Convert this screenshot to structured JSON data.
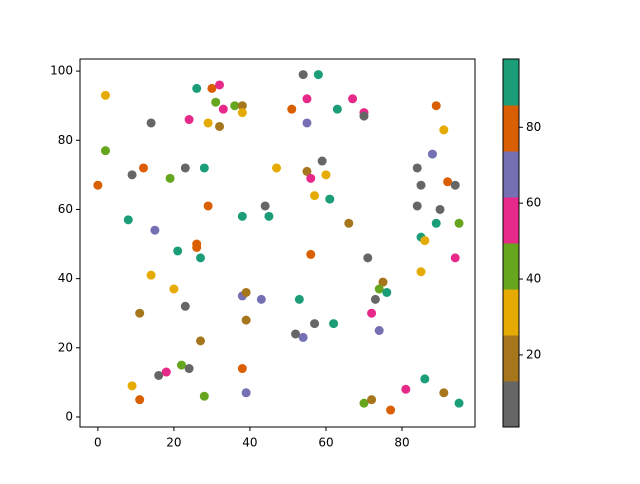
{
  "chart_data": {
    "type": "scatter",
    "x": [
      2,
      2,
      0,
      14,
      9,
      12,
      8,
      15,
      14,
      11,
      9,
      11,
      16,
      18,
      19,
      20,
      21,
      23,
      23,
      22,
      24,
      24,
      26,
      26,
      26,
      27,
      27,
      28,
      28,
      29,
      29,
      30,
      32,
      31,
      33,
      32,
      36,
      38,
      38,
      38,
      38,
      39,
      39,
      38,
      39,
      43,
      44,
      45,
      47,
      51,
      54,
      58,
      55,
      55,
      55,
      56,
      59,
      60,
      57,
      61,
      56,
      53,
      52,
      54,
      57,
      62,
      63,
      67,
      70,
      70,
      66,
      71,
      75,
      74,
      76,
      73,
      72,
      74,
      70,
      72,
      77,
      81,
      86,
      91,
      95,
      89,
      91,
      88,
      84,
      85,
      92,
      94,
      84,
      90,
      89,
      95,
      85,
      86,
      94,
      85
    ],
    "y": [
      93,
      77,
      67,
      85,
      70,
      72,
      57,
      54,
      41,
      30,
      9,
      5,
      12,
      13,
      69,
      37,
      48,
      72,
      32,
      15,
      14,
      86,
      95,
      50,
      49,
      46,
      22,
      6,
      72,
      85,
      61,
      95,
      96,
      91,
      89,
      84,
      90,
      90,
      88,
      58,
      35,
      36,
      28,
      14,
      7,
      34,
      61,
      58,
      72,
      89,
      99,
      99,
      92,
      85,
      71,
      69,
      74,
      70,
      64,
      63,
      47,
      34,
      24,
      23,
      27,
      27,
      89,
      92,
      88,
      87,
      56,
      46,
      39,
      37,
      36,
      34,
      30,
      25,
      4,
      5,
      2,
      8,
      11,
      7,
      4,
      90,
      83,
      76,
      72,
      67,
      68,
      67,
      61,
      60,
      56,
      56,
      52,
      51,
      46,
      42
    ],
    "c": [
      31,
      43,
      80,
      7,
      7,
      80,
      92,
      67,
      31,
      19,
      31,
      80,
      7,
      55,
      43,
      31,
      92,
      7,
      7,
      43,
      7,
      55,
      92,
      80,
      80,
      92,
      19,
      43,
      92,
      31,
      80,
      80,
      55,
      43,
      55,
      19,
      43,
      19,
      31,
      92,
      67,
      19,
      19,
      80,
      67,
      67,
      7,
      92,
      31,
      80,
      7,
      92,
      55,
      67,
      19,
      55,
      7,
      31,
      31,
      92,
      80,
      92,
      7,
      67,
      7,
      92,
      92,
      55,
      55,
      7,
      19,
      7,
      19,
      43,
      92,
      7,
      55,
      67,
      43,
      19,
      80,
      55,
      92,
      19,
      92,
      80,
      31,
      67,
      7,
      7,
      80,
      7,
      7,
      7,
      92,
      43,
      92,
      31,
      55,
      31
    ],
    "colormap": [
      "#666666",
      "#a6761d",
      "#e6ab02",
      "#66a61e",
      "#e7298a",
      "#7570b3",
      "#d95f02",
      "#1b9e77"
    ],
    "clim": [
      1,
      98
    ],
    "cticks": [
      20,
      40,
      60,
      80
    ],
    "xlim": [
      -4.7,
      99.2
    ],
    "ylim": [
      -2.9,
      103.5
    ],
    "xticks": [
      0,
      20,
      40,
      60,
      80
    ],
    "yticks": [
      0,
      20,
      40,
      60,
      80,
      100
    ]
  }
}
